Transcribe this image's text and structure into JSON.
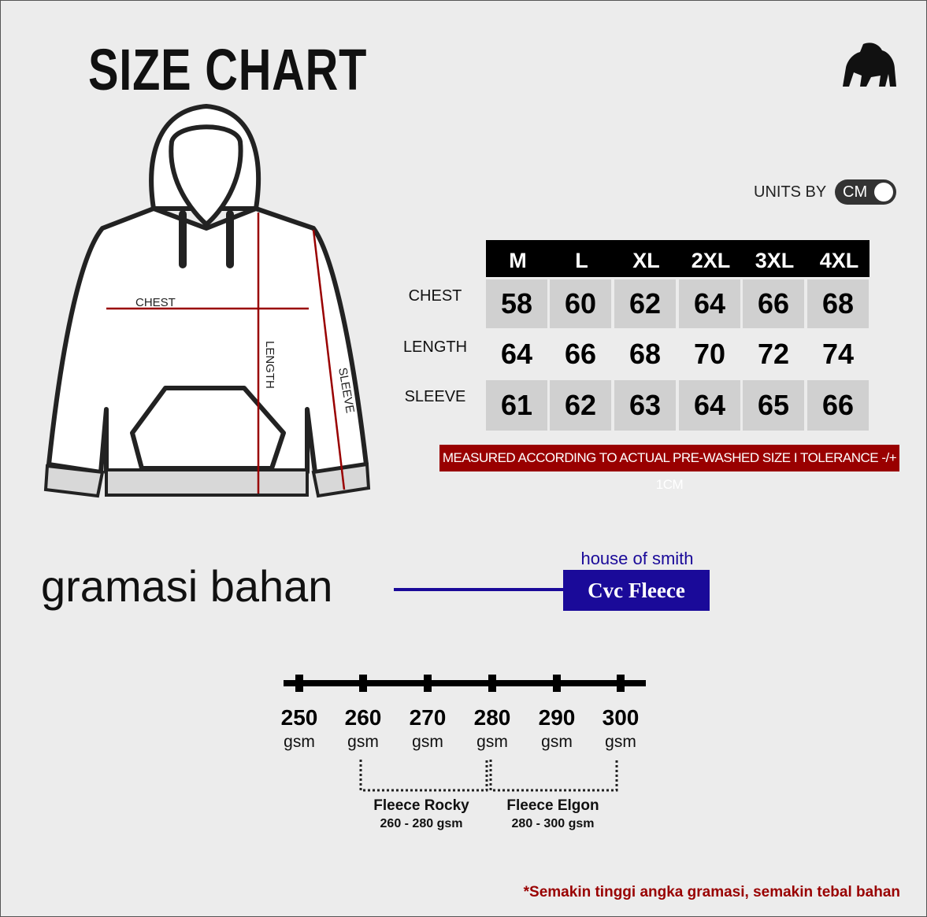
{
  "header": {
    "title": "SIZE CHART",
    "logo_icon": "gorilla-logo-icon"
  },
  "units": {
    "label": "UNITS BY",
    "toggle_value": "CM"
  },
  "hoodie": {
    "chest_label": "CHEST",
    "length_label": "LENGTH",
    "sleeve_label": "SLEEVE",
    "measure_color": "#990000"
  },
  "table": {
    "sizes": [
      "M",
      "L",
      "XL",
      "2XL",
      "3XL",
      "4XL"
    ],
    "rows": [
      {
        "label": "CHEST",
        "values": [
          "58",
          "60",
          "62",
          "64",
          "66",
          "68"
        ]
      },
      {
        "label": "LENGTH",
        "values": [
          "64",
          "66",
          "68",
          "70",
          "72",
          "74"
        ]
      },
      {
        "label": "SLEEVE",
        "values": [
          "61",
          "62",
          "63",
          "64",
          "65",
          "66"
        ]
      }
    ]
  },
  "note": "MEASURED ACCORDING TO ACTUAL PRE-WASHED SIZE  I  TOLERANCE -/+ 1CM",
  "fabric": {
    "heading": "gramasi bahan",
    "brand": "house of smith",
    "material": "Cvc Fleece",
    "accent": "#1a0a99"
  },
  "scale": {
    "ticks": [
      {
        "value": "250",
        "unit": "gsm"
      },
      {
        "value": "260",
        "unit": "gsm"
      },
      {
        "value": "270",
        "unit": "gsm"
      },
      {
        "value": "280",
        "unit": "gsm"
      },
      {
        "value": "290",
        "unit": "gsm"
      },
      {
        "value": "300",
        "unit": "gsm"
      }
    ],
    "ranges": [
      {
        "name": "Fleece Rocky",
        "range": "260 - 280 gsm"
      },
      {
        "name": "Fleece Elgon",
        "range": "280 - 300 gsm"
      }
    ]
  },
  "footer": "*Semakin tinggi angka gramasi, semakin tebal bahan"
}
